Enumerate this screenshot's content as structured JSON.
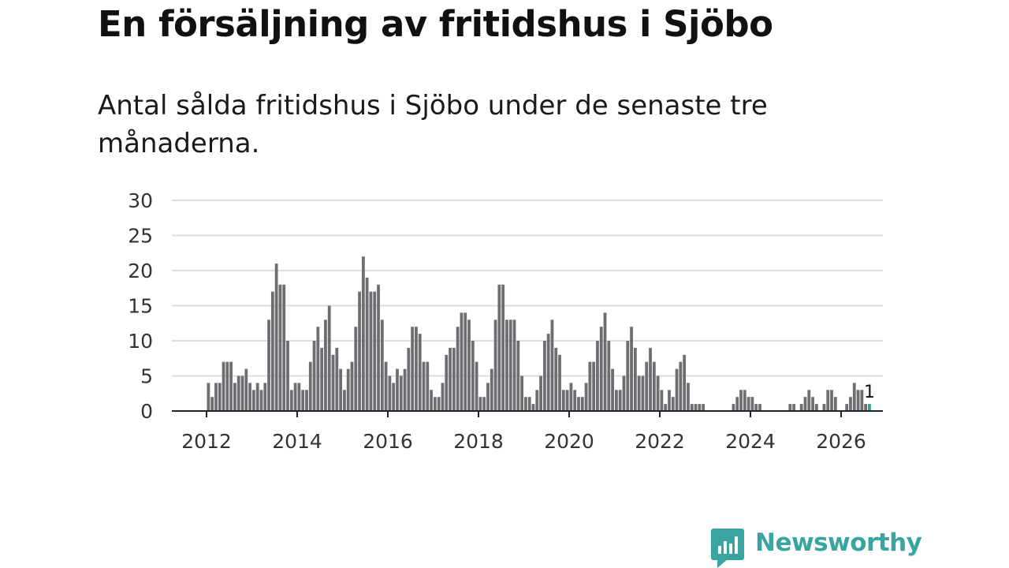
{
  "header": {
    "title": "En försäljning av fritidshus i Sjöbo",
    "subtitle": "Antal sålda fritidshus i Sjöbo under de senaste tre månaderna."
  },
  "brand": {
    "name": "Newsworthy",
    "color": "#3aa5a0",
    "logo_icon": "bar-chart-speech-bubble-icon"
  },
  "colors": {
    "bars": "#6d6d72",
    "highlight": "#2aa39c",
    "grid": "#dddddd",
    "axis": "#222222"
  },
  "chart_data": {
    "type": "bar",
    "start": "2012-01",
    "frequency": "monthly",
    "x_ticks": [
      "2012",
      "2014",
      "2016",
      "2018",
      "2020",
      "2022",
      "2024",
      "2026"
    ],
    "y_ticks": [
      0,
      5,
      10,
      15,
      20,
      25,
      30
    ],
    "ylim": [
      0,
      30
    ],
    "grid": true,
    "highlight_label": "1",
    "values": [
      4,
      2,
      4,
      4,
      7,
      7,
      7,
      4,
      5,
      5,
      6,
      4,
      3,
      4,
      3,
      4,
      13,
      17,
      21,
      18,
      18,
      10,
      3,
      4,
      4,
      3,
      3,
      7,
      10,
      12,
      9,
      13,
      15,
      8,
      9,
      6,
      3,
      6,
      7,
      12,
      17,
      22,
      19,
      17,
      17,
      18,
      13,
      7,
      5,
      4,
      6,
      5,
      6,
      9,
      12,
      12,
      11,
      7,
      7,
      3,
      2,
      2,
      4,
      8,
      9,
      9,
      12,
      14,
      14,
      13,
      10,
      7,
      2,
      2,
      4,
      6,
      13,
      18,
      18,
      13,
      13,
      13,
      10,
      5,
      2,
      2,
      1,
      3,
      5,
      10,
      11,
      13,
      9,
      8,
      3,
      3,
      4,
      3,
      2,
      2,
      4,
      7,
      7,
      10,
      12,
      14,
      10,
      6,
      3,
      3,
      5,
      10,
      12,
      9,
      5,
      5,
      7,
      9,
      7,
      5,
      3,
      1,
      3,
      2,
      6,
      7,
      8,
      4,
      1,
      1,
      1,
      1,
      0,
      0,
      0,
      0,
      0,
      0,
      0,
      1,
      2,
      3,
      3,
      2,
      2,
      1,
      1,
      0,
      0,
      0,
      0,
      0,
      0,
      0,
      1,
      1,
      0,
      1,
      2,
      3,
      2,
      1,
      0,
      1,
      3,
      3,
      2,
      0,
      0,
      1,
      2,
      4,
      3,
      3,
      1,
      1
    ]
  }
}
